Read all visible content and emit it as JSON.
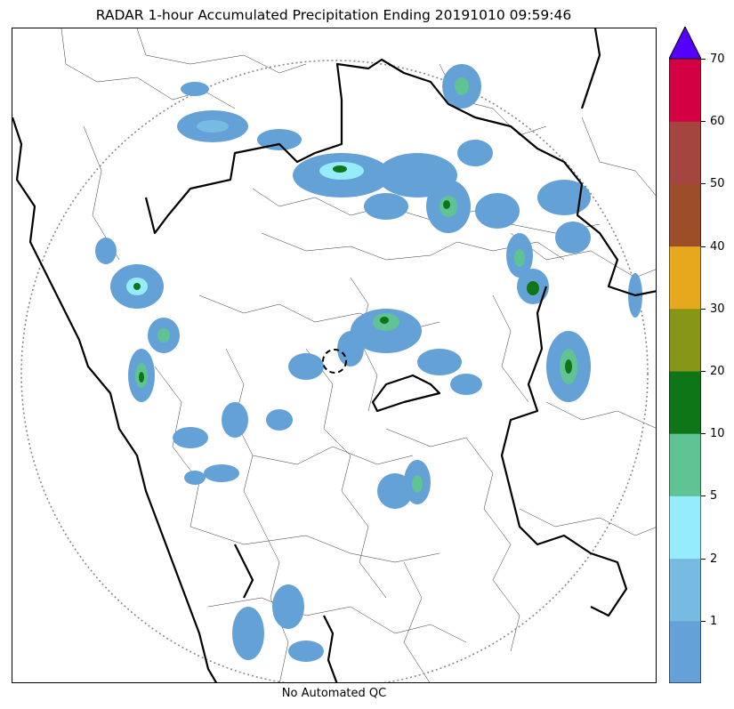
{
  "title": "RADAR 1-hour Accumulated Precipitation Ending 20191010 09:59:46",
  "footer": "No Automated QC",
  "colorbar": {
    "ticks": [
      "1",
      "2",
      "5",
      "10",
      "20",
      "30",
      "40",
      "50",
      "60",
      "70"
    ],
    "colors": [
      "#64a1d6",
      "#78bbe2",
      "#95ecfb",
      "#5fc394",
      "#0f7618",
      "#879616",
      "#e6a91e",
      "#9b4e27",
      "#a4463f",
      "#d30044"
    ],
    "extend_color": "#5500ff"
  },
  "legend_note": ""
}
